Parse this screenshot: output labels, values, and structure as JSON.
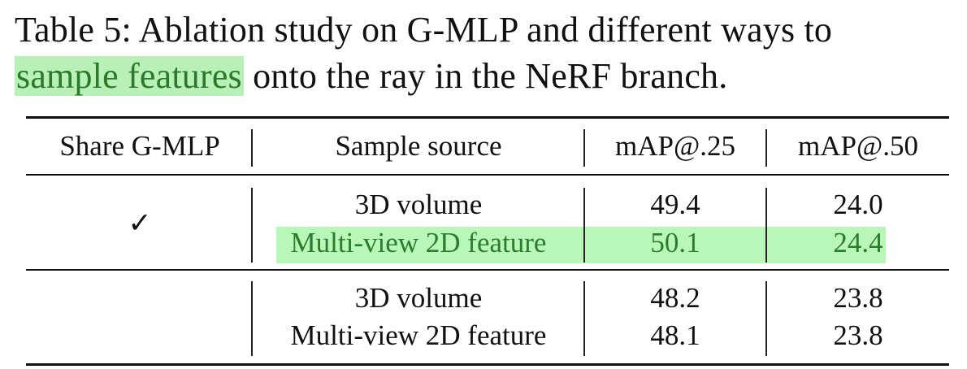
{
  "caption": {
    "prefix": "Table 5:  Ablation study on G-MLP and different ways to",
    "highlighted": "sample features",
    "suffix": " onto the ray in the NeRF branch."
  },
  "table": {
    "headers": [
      "Share G-MLP",
      "Sample source",
      "mAP@.25",
      "mAP@.50"
    ],
    "groups": [
      {
        "share_gmlp": "✓",
        "rows": [
          {
            "source": "3D volume",
            "map25": "49.4",
            "map50": "24.0",
            "highlighted": false
          },
          {
            "source": "Multi-view 2D feature",
            "map25": "50.1",
            "map50": "24.4",
            "highlighted": true
          }
        ]
      },
      {
        "share_gmlp": "",
        "rows": [
          {
            "source": "3D volume",
            "map25": "48.2",
            "map50": "23.8",
            "highlighted": false
          },
          {
            "source": "Multi-view 2D feature",
            "map25": "48.1",
            "map50": "23.8",
            "highlighted": false
          }
        ]
      }
    ]
  },
  "colors": {
    "highlight_bg": "#b8f7b8",
    "highlight_text": "#2b7d2b"
  }
}
